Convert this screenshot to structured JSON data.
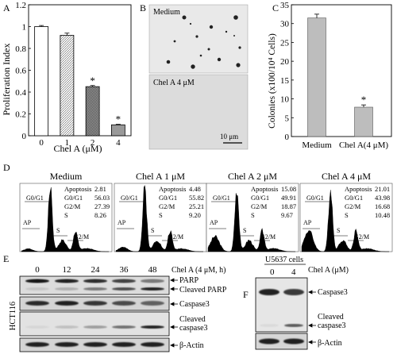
{
  "chart_data": [
    {
      "panel": "A",
      "type": "bar",
      "ylabel": "Proliferation Index",
      "xlabel": "Chel A (μM)",
      "categories": [
        "0",
        "1",
        "2",
        "4"
      ],
      "values": [
        1.0,
        0.92,
        0.45,
        0.1
      ],
      "errors": [
        0.01,
        0.02,
        0.01,
        0.005
      ],
      "ylim": [
        0,
        1.2
      ],
      "yticks": [
        "0",
        "0.2",
        "0.4",
        "0.6",
        "0.8",
        "1",
        "1.2"
      ],
      "significance": [
        "",
        "",
        "*",
        "*"
      ],
      "fills": [
        "white",
        "hatch-light",
        "hatch-dense",
        "gray"
      ]
    },
    {
      "panel": "C",
      "type": "bar",
      "ylabel": "Colonies (x100/10⁴ Cells)",
      "categories": [
        "Medium",
        "Chel A(4 μM)"
      ],
      "values": [
        31.5,
        7.8
      ],
      "errors": [
        1.0,
        0.6
      ],
      "ylim": [
        0,
        35
      ],
      "yticks": [
        "0",
        "5",
        "10",
        "15",
        "20",
        "25",
        "30",
        "35"
      ],
      "significance": [
        "",
        "*"
      ]
    },
    {
      "panel": "D",
      "type": "table",
      "columns": [
        "Apoptosis",
        "G0/G1",
        "G2/M",
        "S"
      ],
      "rows": [
        {
          "title": "Medium",
          "values": [
            "2.81",
            "56.03",
            "27.39",
            "8.26"
          ]
        },
        {
          "title": "Chel A 1 μM",
          "values": [
            "4.48",
            "55.82",
            "25.21",
            "9.20"
          ]
        },
        {
          "title": "Chel A 2 μM",
          "values": [
            "15.08",
            "49.91",
            "18.87",
            "9.67"
          ]
        },
        {
          "title": "Chel A 4 μM",
          "values": [
            "21.01",
            "43.98",
            "16.68",
            "10.48"
          ]
        }
      ]
    }
  ],
  "panels": {
    "A": {
      "letter": "A",
      "star1": "*",
      "star2": "*"
    },
    "B": {
      "letter": "B",
      "top_label": "Medium",
      "bottom_label": "Chel A  4 μM",
      "scale": "10 μm"
    },
    "C": {
      "letter": "C",
      "star": "*"
    },
    "D": {
      "letter": "D",
      "label_g0g1": "G0/G1",
      "label_ap": "AP",
      "label_s": "S",
      "label_g2m": "G2/M"
    },
    "E": {
      "letter": "E",
      "times": [
        "0",
        "12",
        "24",
        "36",
        "48"
      ],
      "treatment": "Chel A (4 μM, h)",
      "cell_line": "HCT116",
      "band_parp": "PARP",
      "band_cleaved_parp": "Cleaved PARP",
      "band_caspase3": "Caspase3",
      "band_cleaved_caspase3_a": "Cleaved",
      "band_cleaved_caspase3_b": "caspase3",
      "band_actin": "β-Actin"
    },
    "F": {
      "letter": "F",
      "cell_line": "U5637 cells",
      "doses": [
        "0",
        "4"
      ],
      "treatment": "Chel A (μM)",
      "band_caspase3": "Caspase3",
      "band_cleaved_a": "Cleaved",
      "band_cleaved_b": "caspase3",
      "band_actin": "β-Actin"
    }
  }
}
